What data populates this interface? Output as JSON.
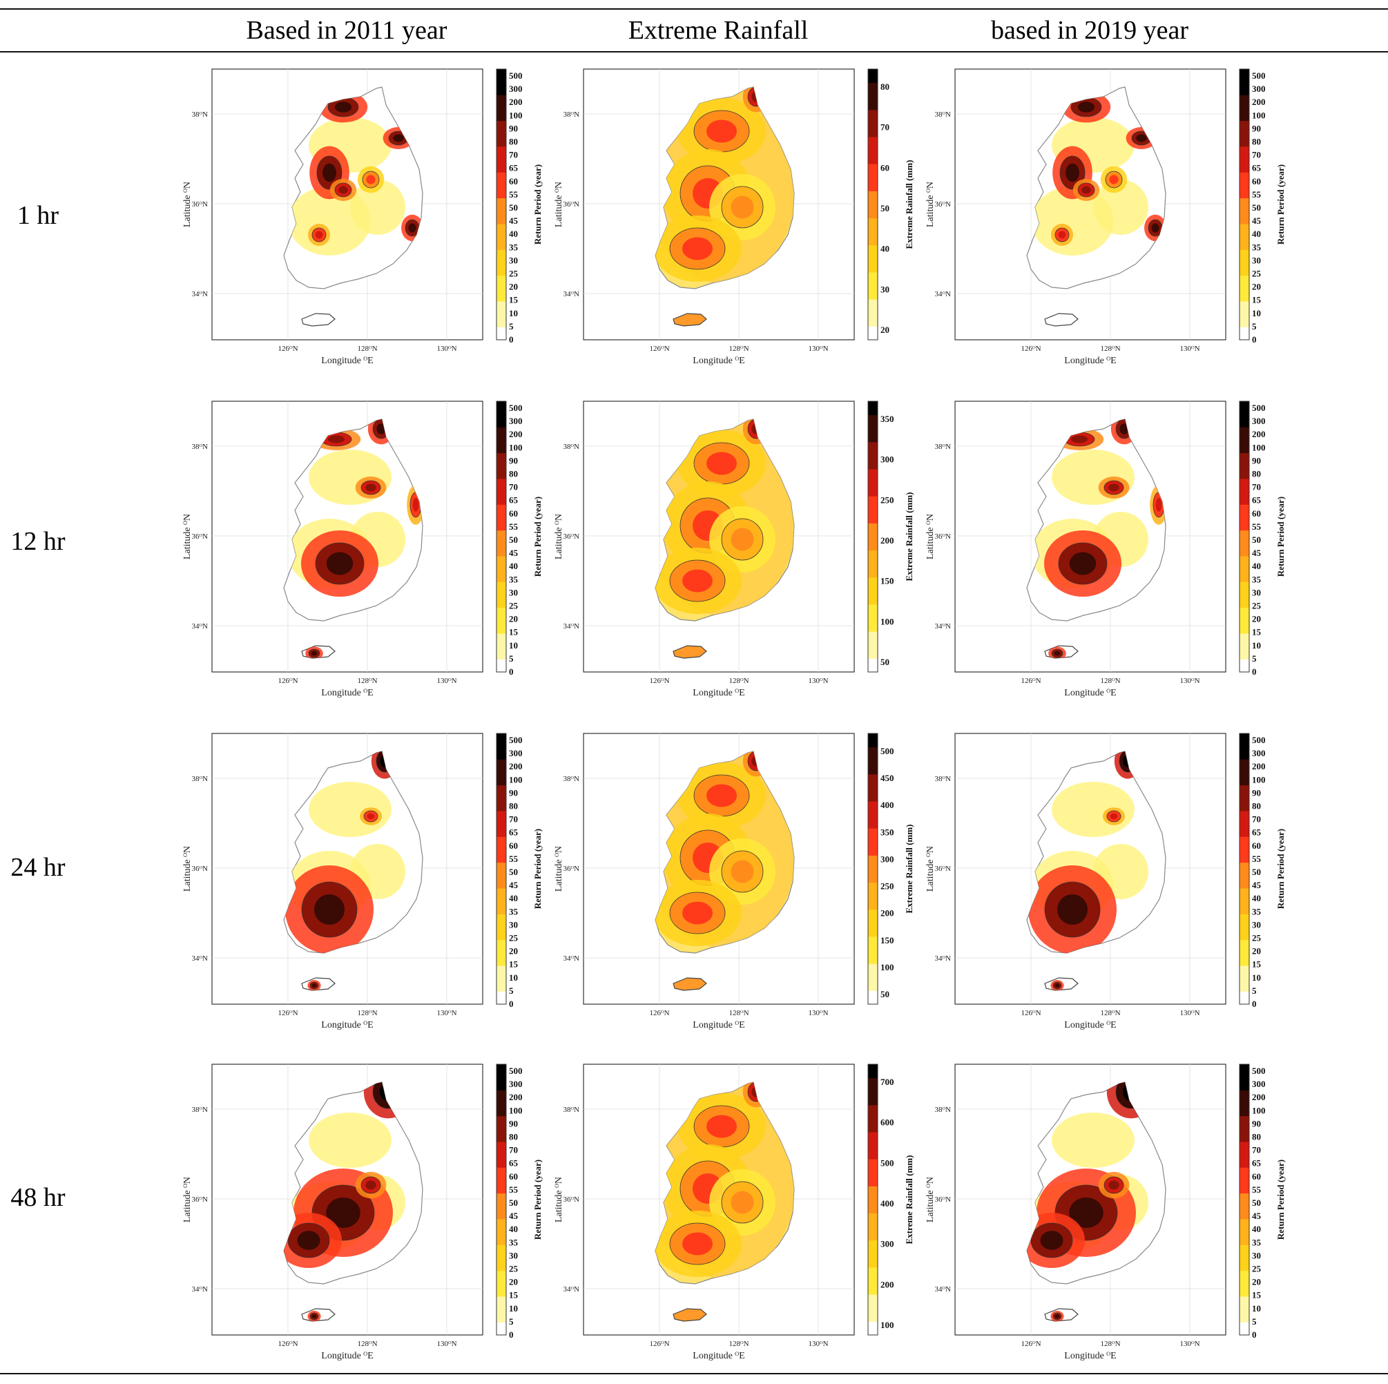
{
  "table": {
    "header": [
      "",
      "Based in 2011 year",
      "Extreme Rainfall",
      "based in 2019 year"
    ],
    "rows": [
      "1 hr",
      "12 hr",
      "24 hr",
      "48 hr"
    ]
  },
  "axes": {
    "xlabel": "Longitude ᴼE",
    "ylabel": "Latitude ᴼN",
    "xticks": [
      "126ᴼN",
      "128ᴼN",
      "130ᴼN"
    ],
    "yticks": [
      "38ᴼN",
      "36ᴼN",
      "34ᴼN"
    ]
  },
  "colors": {
    "scale": [
      "#ffffff",
      "#fff7a8",
      "#ffea3a",
      "#ffd21a",
      "#ffb21a",
      "#ff8c1a",
      "#ff3a1a",
      "#d41a10",
      "#8a1408",
      "#3a0a04",
      "#000000"
    ]
  },
  "chart_data": [
    {
      "type": "heatmap",
      "row": "1 hr",
      "column": "Based in 2011 year",
      "xlabel": "Longitude ᴼE",
      "ylabel": "Latitude ᴼN",
      "xticks": [
        126,
        128,
        130
      ],
      "yticks": [
        38,
        36,
        34
      ],
      "colorbar": {
        "label": "Return Period (year)",
        "ticks": [
          0,
          5,
          10,
          15,
          20,
          25,
          30,
          35,
          40,
          45,
          50,
          55,
          60,
          65,
          70,
          80,
          90,
          100,
          200,
          300,
          500
        ]
      }
    },
    {
      "type": "heatmap",
      "row": "1 hr",
      "column": "Extreme Rainfall",
      "xlabel": "Longitude ᴼE",
      "ylabel": "Latitude ᴼN",
      "xticks": [
        126,
        128,
        130
      ],
      "yticks": [
        38,
        36,
        34
      ],
      "colorbar": {
        "label": "Extreme Rainfall (mm)",
        "ticks": [
          20,
          30,
          40,
          50,
          60,
          70,
          80
        ]
      }
    },
    {
      "type": "heatmap",
      "row": "1 hr",
      "column": "based in 2019 year",
      "xlabel": "Longitude ᴼE",
      "ylabel": "Latitude ᴼN",
      "xticks": [
        126,
        128,
        130
      ],
      "yticks": [
        38,
        36,
        34
      ],
      "colorbar": {
        "label": "Return Period (year)",
        "ticks": [
          0,
          5,
          10,
          15,
          20,
          25,
          30,
          35,
          40,
          45,
          50,
          55,
          60,
          65,
          70,
          80,
          90,
          100,
          200,
          300,
          500
        ]
      }
    },
    {
      "type": "heatmap",
      "row": "12 hr",
      "column": "Based in 2011 year",
      "xlabel": "Longitude ᴼE",
      "ylabel": "Latitude ᴼN",
      "xticks": [
        126,
        128,
        130
      ],
      "yticks": [
        38,
        36,
        34
      ],
      "colorbar": {
        "label": "Return Period (year)",
        "ticks": [
          0,
          5,
          10,
          15,
          20,
          25,
          30,
          35,
          40,
          45,
          50,
          55,
          60,
          65,
          70,
          80,
          90,
          100,
          200,
          300,
          500
        ]
      }
    },
    {
      "type": "heatmap",
      "row": "12 hr",
      "column": "Extreme Rainfall",
      "xlabel": "Longitude ᴼE",
      "ylabel": "Latitude ᴼN",
      "xticks": [
        126,
        128,
        130
      ],
      "yticks": [
        38,
        36,
        34
      ],
      "colorbar": {
        "label": "Extreme Rainfall (mm)",
        "ticks": [
          50,
          100,
          150,
          200,
          250,
          300,
          350
        ]
      }
    },
    {
      "type": "heatmap",
      "row": "12 hr",
      "column": "based in 2019 year",
      "xlabel": "Longitude ᴼE",
      "ylabel": "Latitude ᴼN",
      "xticks": [
        126,
        128,
        130
      ],
      "yticks": [
        38,
        36,
        34
      ],
      "colorbar": {
        "label": "Return Period (year)",
        "ticks": [
          0,
          5,
          10,
          15,
          20,
          25,
          30,
          35,
          40,
          45,
          50,
          55,
          60,
          65,
          70,
          80,
          90,
          100,
          200,
          300,
          500
        ]
      }
    },
    {
      "type": "heatmap",
      "row": "24 hr",
      "column": "Based in 2011 year",
      "xlabel": "Longitude ᴼE",
      "ylabel": "Latitude ᴼN",
      "xticks": [
        126,
        128,
        130
      ],
      "yticks": [
        38,
        36,
        34
      ],
      "colorbar": {
        "label": "Return Period (year)",
        "ticks": [
          0,
          5,
          10,
          15,
          20,
          25,
          30,
          35,
          40,
          45,
          50,
          55,
          60,
          65,
          70,
          80,
          90,
          100,
          200,
          300,
          500
        ]
      }
    },
    {
      "type": "heatmap",
      "row": "24 hr",
      "column": "Extreme Rainfall",
      "xlabel": "Longitude ᴼE",
      "ylabel": "Latitude ᴼN",
      "xticks": [
        126,
        128,
        130
      ],
      "yticks": [
        38,
        36,
        34
      ],
      "colorbar": {
        "label": "Extreme Rainfall (mm)",
        "ticks": [
          50,
          100,
          150,
          200,
          250,
          300,
          350,
          400,
          450,
          500
        ]
      }
    },
    {
      "type": "heatmap",
      "row": "24 hr",
      "column": "based in 2019 year",
      "xlabel": "Longitude ᴼE",
      "ylabel": "Latitude ᴼN",
      "xticks": [
        126,
        128,
        130
      ],
      "yticks": [
        38,
        36,
        34
      ],
      "colorbar": {
        "label": "Return Period (year)",
        "ticks": [
          0,
          5,
          10,
          15,
          20,
          25,
          30,
          35,
          40,
          45,
          50,
          55,
          60,
          65,
          70,
          80,
          90,
          100,
          200,
          300,
          500
        ]
      }
    },
    {
      "type": "heatmap",
      "row": "48 hr",
      "column": "Based in 2011 year",
      "xlabel": "Longitude ᴼE",
      "ylabel": "Latitude ᴼN",
      "xticks": [
        126,
        128,
        130
      ],
      "yticks": [
        38,
        36,
        34
      ],
      "colorbar": {
        "label": "Return Period (year)",
        "ticks": [
          0,
          5,
          10,
          15,
          20,
          25,
          30,
          35,
          40,
          45,
          50,
          55,
          60,
          65,
          70,
          80,
          90,
          100,
          200,
          300,
          500
        ]
      }
    },
    {
      "type": "heatmap",
      "row": "48 hr",
      "column": "Extreme Rainfall",
      "xlabel": "Longitude ᴼE",
      "ylabel": "Latitude ᴼN",
      "xticks": [
        126,
        128,
        130
      ],
      "yticks": [
        38,
        36,
        34
      ],
      "colorbar": {
        "label": "Extreme Rainfall (mm)",
        "ticks": [
          100,
          200,
          300,
          400,
          500,
          600,
          700
        ]
      }
    },
    {
      "type": "heatmap",
      "row": "48 hr",
      "column": "based in 2019 year",
      "xlabel": "Longitude ᴼE",
      "ylabel": "Latitude ᴼN",
      "xticks": [
        126,
        128,
        130
      ],
      "yticks": [
        38,
        36,
        34
      ],
      "colorbar": {
        "label": "Return Period (year)",
        "ticks": [
          0,
          5,
          10,
          15,
          20,
          25,
          30,
          35,
          40,
          45,
          50,
          55,
          60,
          65,
          70,
          80,
          90,
          100,
          200,
          300,
          500
        ]
      }
    }
  ]
}
